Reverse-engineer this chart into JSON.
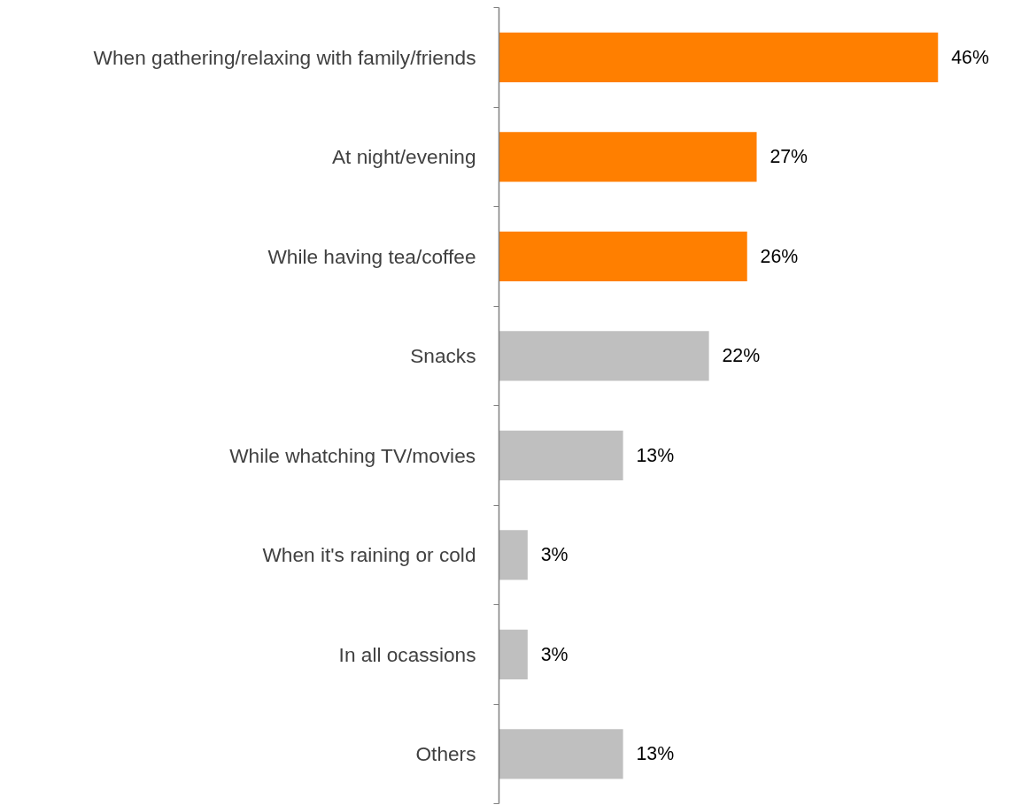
{
  "chart_data": {
    "type": "bar",
    "orientation": "horizontal",
    "categories": [
      "When gathering/relaxing with family/friends",
      "At night/evening",
      "While having tea/coffee",
      "Snacks",
      "While whatching TV/movies",
      "When it's raining or cold",
      "In all ocassions",
      "Others"
    ],
    "values": [
      46,
      27,
      26,
      22,
      13,
      3,
      3,
      13
    ],
    "value_labels": [
      "46%",
      "27%",
      "26%",
      "22%",
      "13%",
      "3%",
      "3%",
      "13%"
    ],
    "colors": [
      "#ff7f00",
      "#ff7f00",
      "#ff7f00",
      "#bfbfbf",
      "#bfbfbf",
      "#bfbfbf",
      "#bfbfbf",
      "#bfbfbf"
    ],
    "tick_labels": "y"
  }
}
